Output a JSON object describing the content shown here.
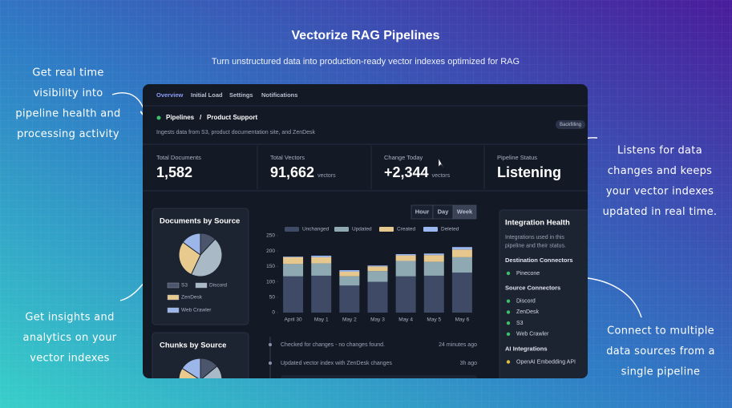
{
  "header": {
    "title": "Vectorize RAG Pipelines",
    "subtitle": "Turn unstructured data into production-ready vector indexes optimized for RAG"
  },
  "annotations": [
    {
      "lines": [
        "Get real time",
        "visibility into",
        "pipeline health and",
        "processing activity"
      ]
    },
    {
      "lines": [
        "Listens for data",
        "changes and keeps",
        "your vector indexes",
        "updated in real time."
      ]
    },
    {
      "lines": [
        "Get insights and",
        "analytics on your",
        "vector indexes"
      ]
    },
    {
      "lines": [
        "Connect to multiple",
        "data sources from a",
        "single pipeline"
      ]
    }
  ],
  "dashboard": {
    "tabs": [
      "Overview",
      "Initial Load",
      "Settings",
      "Notifications"
    ],
    "active_tab": 0,
    "breadcrumb": [
      "Pipelines",
      "/",
      "Product Support"
    ],
    "description": "Ingests data from S3, product documentation site, and ZenDesk",
    "badge": "Backfilling",
    "stats": [
      {
        "label": "Total Documents",
        "value": "1,582"
      },
      {
        "label": "Total Vectors",
        "value": "91,662",
        "unit": "vectors"
      },
      {
        "label": "Change Today",
        "value": "+2,344",
        "unit": "vectors"
      },
      {
        "label": "Pipeline Status",
        "value": "Listening"
      }
    ],
    "documents_chart": {
      "type": "pie",
      "title": "Documents by Source",
      "categories": [
        "S3",
        "Discord",
        "ZenDesk",
        "Web Crawler"
      ],
      "values": [
        12,
        45,
        28,
        15
      ],
      "colors": [
        "#4b566d",
        "#a9b9c6",
        "#e8c98e",
        "#9cb6ea"
      ]
    },
    "chunks_chart": {
      "type": "pie",
      "title": "Chunks by Source",
      "values": [
        14,
        40,
        30,
        16
      ],
      "colors": [
        "#4b566d",
        "#a9b9c6",
        "#e8c98e",
        "#9cb6ea"
      ]
    },
    "activity_chart": {
      "type": "bar",
      "stacked": true,
      "ranges": [
        "Hour",
        "Day",
        "Week"
      ],
      "selected_range": 2,
      "categories": [
        "April 30",
        "May 1",
        "May 2",
        "May 3",
        "May 4",
        "May 5",
        "May 6"
      ],
      "series": [
        {
          "name": "Unchanged",
          "color": "#3e4a66",
          "values": [
            118,
            120,
            88,
            100,
            118,
            120,
            130
          ]
        },
        {
          "name": "Updated",
          "color": "#8fa9b3",
          "values": [
            40,
            40,
            30,
            35,
            50,
            45,
            50
          ]
        },
        {
          "name": "Created",
          "color": "#e6c88f",
          "values": [
            22,
            20,
            15,
            15,
            18,
            22,
            25
          ]
        },
        {
          "name": "Deleted",
          "color": "#9bb8f0",
          "values": [
            2,
            5,
            5,
            3,
            4,
            5,
            8
          ]
        }
      ],
      "ylim": [
        0,
        250
      ],
      "yticks": [
        0,
        50,
        100,
        150,
        200,
        250
      ]
    },
    "activity_log": [
      {
        "text": "Checked for changes - no changes found.",
        "time": "24 minutes ago"
      },
      {
        "text": "Updated vector index with ZenDesk changes",
        "time": "3h ago"
      }
    ],
    "integrations": {
      "title": "Integration Health",
      "description": [
        "Integrations used in this",
        "pipeline and their status."
      ],
      "groups": [
        {
          "title": "Destination Connectors",
          "items": [
            {
              "name": "Pinecone",
              "color": "#3fbf6a"
            }
          ]
        },
        {
          "title": "Source Connectors",
          "items": [
            {
              "name": "Discord",
              "color": "#3fbf6a"
            },
            {
              "name": "ZenDesk",
              "color": "#3fbf6a"
            },
            {
              "name": "S3",
              "color": "#3fbf6a"
            },
            {
              "name": "Web Crawler",
              "color": "#3fbf6a"
            }
          ]
        },
        {
          "title": "AI Integrations",
          "items": [
            {
              "name": "OpenAI Embedding API",
              "color": "#e0c040"
            }
          ]
        }
      ]
    }
  }
}
